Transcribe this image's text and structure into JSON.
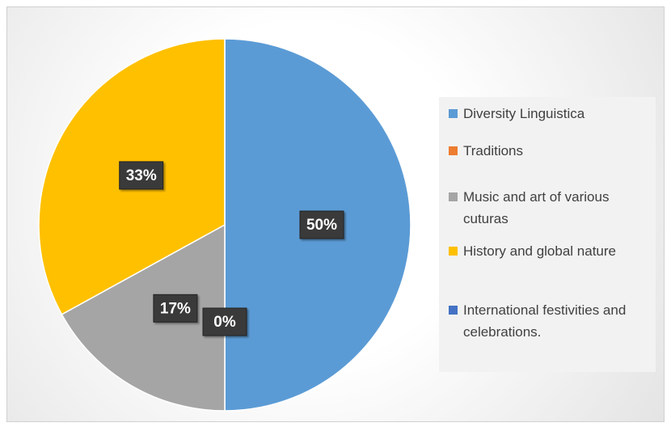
{
  "chart_data": {
    "type": "pie",
    "categories": [
      "Diversity Linguistica",
      "Traditions",
      "Music and art of various cuturas",
      "History and global nature",
      "International festivities and celebrations."
    ],
    "values": [
      50,
      0,
      17,
      33,
      0
    ],
    "value_labels": [
      "50%",
      "0%",
      "17%",
      "33%",
      null
    ],
    "colors": [
      "#5b9bd5",
      "#ed7d31",
      "#a5a5a5",
      "#ffc000",
      "#4472c4"
    ],
    "legend": "right"
  }
}
